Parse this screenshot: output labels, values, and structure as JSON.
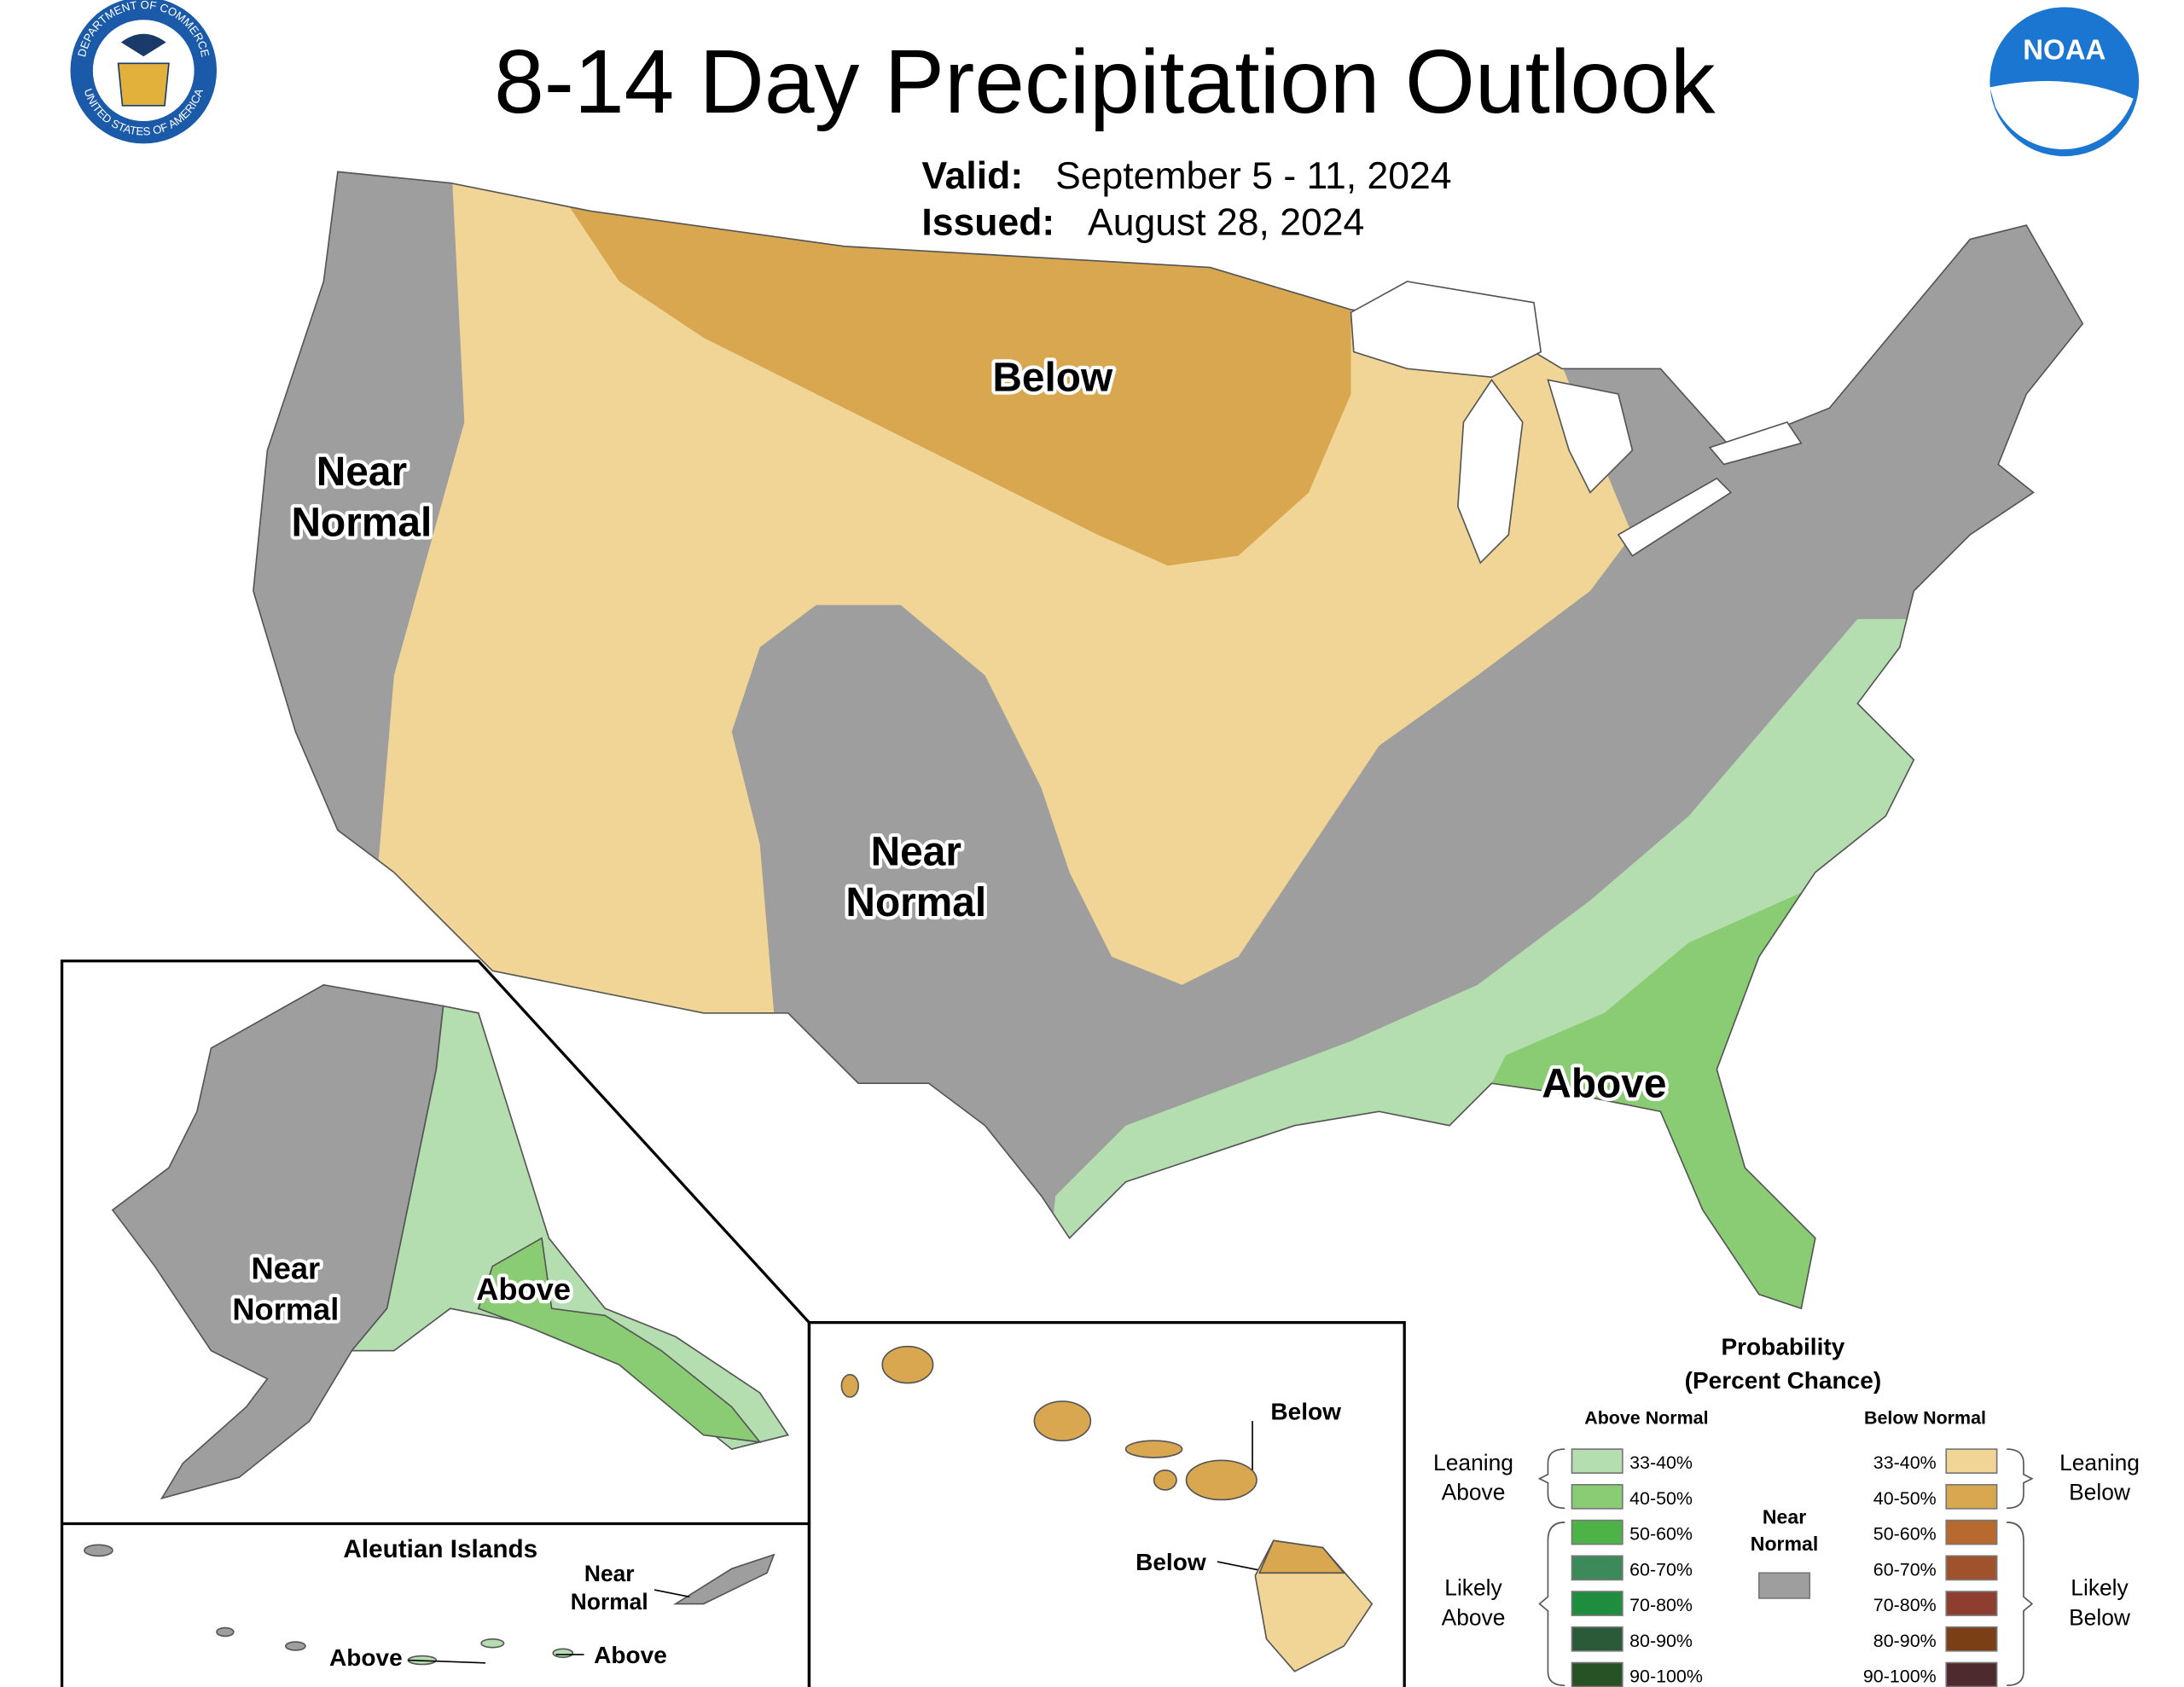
{
  "header": {
    "title": "8-14 Day Precipitation Outlook",
    "valid_label": "Valid:",
    "valid": "September 5 - 11, 2024",
    "issued_label": "Issued:",
    "issued": "August 28, 2024"
  },
  "logos": {
    "commerce_top": "DEPARTMENT OF COMMERCE",
    "commerce_bottom": "UNITED STATES OF AMERICA",
    "noaa": "NOAA"
  },
  "map_labels": {
    "conus_below": [
      "Below"
    ],
    "conus_near_west": [
      "Near",
      "Normal"
    ],
    "conus_near_south": [
      "Near",
      "Normal"
    ],
    "conus_above": [
      "Above"
    ],
    "alaska_near": [
      "Near",
      "Normal"
    ],
    "alaska_above": [
      "Above"
    ],
    "aleutian_title": [
      "Aleutian Islands"
    ],
    "aleutian_near": [
      "Near",
      "Normal"
    ],
    "aleutian_above_west": [
      "Above"
    ],
    "aleutian_above_east": [
      "Above"
    ],
    "hawaii_below_north": [
      "Below"
    ],
    "hawaii_below_south": [
      "Below"
    ]
  },
  "legend": {
    "title": [
      "Probability",
      "(Percent Chance)"
    ],
    "above_header": "Above Normal",
    "below_header": "Below Normal",
    "near_normal": [
      "Near",
      "Normal"
    ],
    "near_color": "#9e9e9e",
    "leaning_above": [
      "Leaning",
      "Above"
    ],
    "likely_above": [
      "Likely",
      "Above"
    ],
    "leaning_below": [
      "Leaning",
      "Below"
    ],
    "likely_below": [
      "Likely",
      "Below"
    ],
    "above_bins": [
      {
        "label": "33-40%",
        "color": "#b5deb0"
      },
      {
        "label": "40-50%",
        "color": "#8acc73"
      },
      {
        "label": "50-60%",
        "color": "#4db346"
      },
      {
        "label": "60-70%",
        "color": "#3c8a5a"
      },
      {
        "label": "70-80%",
        "color": "#1e8e3e"
      },
      {
        "label": "80-90%",
        "color": "#2b5a38"
      },
      {
        "label": "90-100%",
        "color": "#265225"
      }
    ],
    "below_bins": [
      {
        "label": "33-40%",
        "color": "#f0d596"
      },
      {
        "label": "40-50%",
        "color": "#d8a74f"
      },
      {
        "label": "50-60%",
        "color": "#b8692e"
      },
      {
        "label": "60-70%",
        "color": "#a0522d"
      },
      {
        "label": "70-80%",
        "color": "#8e3d2f"
      },
      {
        "label": "80-90%",
        "color": "#7b3f17"
      },
      {
        "label": "90-100%",
        "color": "#4c2a2e"
      }
    ]
  }
}
